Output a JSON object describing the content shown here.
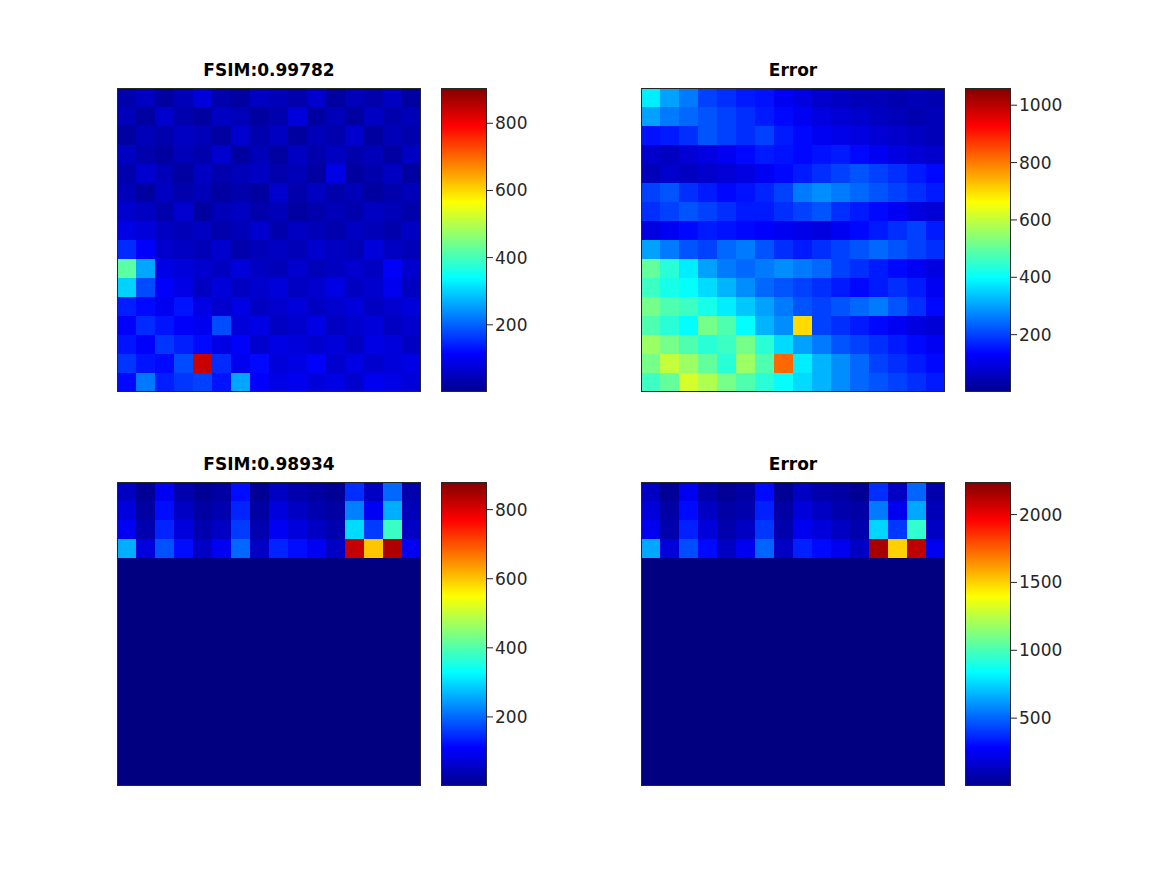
{
  "chart_data": [
    {
      "type": "heatmap",
      "title": "FSIM:0.99782",
      "tick_labels": false,
      "clim": [
        0,
        905
      ],
      "cticks": [
        0,
        200,
        400,
        600,
        800
      ],
      "cells": [
        [
          40,
          60,
          30,
          50,
          80,
          40,
          30,
          60,
          50,
          40,
          70,
          30,
          50,
          40,
          60,
          30
        ],
        [
          50,
          30,
          70,
          40,
          30,
          60,
          50,
          30,
          40,
          80,
          30,
          50,
          30,
          60,
          40,
          50
        ],
        [
          30,
          50,
          40,
          60,
          50,
          30,
          70,
          40,
          60,
          30,
          50,
          40,
          70,
          30,
          50,
          40
        ],
        [
          60,
          40,
          30,
          50,
          40,
          70,
          30,
          50,
          30,
          60,
          40,
          60,
          40,
          50,
          30,
          60
        ],
        [
          40,
          70,
          50,
          30,
          60,
          40,
          50,
          60,
          40,
          50,
          30,
          90,
          30,
          40,
          60,
          30
        ],
        [
          50,
          30,
          60,
          40,
          50,
          30,
          40,
          30,
          70,
          40,
          60,
          40,
          50,
          30,
          40,
          50
        ],
        [
          70,
          60,
          40,
          70,
          30,
          50,
          60,
          40,
          50,
          30,
          40,
          50,
          40,
          60,
          50,
          40
        ],
        [
          90,
          80,
          60,
          50,
          60,
          40,
          50,
          70,
          40,
          60,
          50,
          40,
          60,
          50,
          40,
          60
        ],
        [
          150,
          110,
          70,
          60,
          50,
          70,
          40,
          50,
          60,
          50,
          70,
          60,
          50,
          80,
          60,
          50
        ],
        [
          420,
          260,
          90,
          80,
          70,
          60,
          80,
          60,
          50,
          70,
          50,
          60,
          70,
          60,
          110,
          70
        ],
        [
          300,
          180,
          110,
          90,
          60,
          80,
          60,
          70,
          80,
          60,
          70,
          90,
          60,
          70,
          100,
          60
        ],
        [
          140,
          120,
          100,
          130,
          90,
          70,
          90,
          60,
          70,
          80,
          60,
          70,
          80,
          60,
          70,
          80
        ],
        [
          110,
          150,
          130,
          110,
          100,
          180,
          80,
          90,
          60,
          70,
          90,
          60,
          70,
          80,
          60,
          70
        ],
        [
          130,
          110,
          160,
          140,
          120,
          90,
          110,
          70,
          90,
          80,
          70,
          80,
          60,
          90,
          80,
          60
        ],
        [
          160,
          130,
          120,
          180,
          840,
          150,
          100,
          120,
          80,
          90,
          110,
          70,
          90,
          70,
          80,
          90
        ],
        [
          120,
          220,
          140,
          160,
          170,
          130,
          260,
          110,
          90,
          100,
          80,
          90,
          70,
          100,
          90,
          80
        ]
      ]
    },
    {
      "type": "heatmap",
      "title": "Error",
      "tick_labels": false,
      "clim": [
        0,
        1060
      ],
      "cticks": [
        0,
        200,
        400,
        600,
        800,
        1000
      ],
      "cells": [
        [
          380,
          300,
          260,
          200,
          180,
          160,
          150,
          120,
          100,
          80,
          70,
          60,
          60,
          50,
          60,
          50
        ],
        [
          300,
          260,
          240,
          220,
          200,
          180,
          160,
          140,
          120,
          100,
          90,
          80,
          70,
          60,
          50,
          60
        ],
        [
          150,
          160,
          180,
          220,
          200,
          180,
          200,
          160,
          140,
          120,
          110,
          100,
          90,
          80,
          70,
          60
        ],
        [
          80,
          70,
          90,
          100,
          120,
          140,
          160,
          150,
          140,
          150,
          160,
          140,
          120,
          100,
          90,
          80
        ],
        [
          60,
          80,
          70,
          80,
          90,
          100,
          120,
          140,
          160,
          180,
          200,
          220,
          200,
          180,
          160,
          140
        ],
        [
          200,
          220,
          180,
          160,
          140,
          150,
          170,
          200,
          260,
          280,
          260,
          240,
          220,
          200,
          180,
          160
        ],
        [
          180,
          200,
          220,
          200,
          180,
          160,
          160,
          180,
          200,
          220,
          180,
          160,
          140,
          120,
          100,
          90
        ],
        [
          100,
          120,
          140,
          160,
          150,
          140,
          130,
          120,
          110,
          100,
          120,
          140,
          160,
          180,
          200,
          160
        ],
        [
          300,
          260,
          220,
          200,
          240,
          260,
          220,
          180,
          160,
          180,
          200,
          220,
          240,
          220,
          200,
          180
        ],
        [
          500,
          440,
          380,
          300,
          260,
          240,
          260,
          280,
          260,
          240,
          200,
          180,
          160,
          140,
          120,
          100
        ],
        [
          460,
          420,
          400,
          360,
          320,
          280,
          240,
          220,
          200,
          180,
          160,
          140,
          160,
          180,
          160,
          120
        ],
        [
          520,
          480,
          460,
          420,
          380,
          340,
          300,
          260,
          220,
          200,
          220,
          240,
          260,
          220,
          180,
          140
        ],
        [
          480,
          440,
          400,
          520,
          480,
          400,
          320,
          280,
          700,
          200,
          180,
          160,
          140,
          120,
          100,
          90
        ],
        [
          560,
          520,
          480,
          440,
          460,
          520,
          440,
          360,
          300,
          260,
          220,
          200,
          180,
          160,
          140,
          120
        ],
        [
          520,
          600,
          560,
          500,
          440,
          560,
          480,
          820,
          380,
          320,
          280,
          240,
          200,
          180,
          160,
          140
        ],
        [
          460,
          500,
          620,
          580,
          520,
          480,
          440,
          400,
          360,
          320,
          280,
          240,
          220,
          200,
          180,
          160
        ]
      ]
    },
    {
      "type": "heatmap",
      "title": "FSIM:0.98934",
      "tick_labels": false,
      "clim": [
        0,
        880
      ],
      "cticks": [
        0,
        200,
        400,
        600,
        800
      ],
      "cells": [
        [
          60,
          20,
          100,
          40,
          20,
          30,
          120,
          20,
          60,
          40,
          30,
          20,
          150,
          60,
          200,
          40
        ],
        [
          80,
          30,
          120,
          60,
          30,
          40,
          140,
          30,
          80,
          60,
          40,
          30,
          220,
          100,
          260,
          50
        ],
        [
          100,
          40,
          140,
          80,
          40,
          60,
          160,
          40,
          100,
          80,
          60,
          40,
          300,
          160,
          380,
          60
        ],
        [
          260,
          80,
          180,
          120,
          60,
          100,
          200,
          60,
          140,
          120,
          100,
          60,
          820,
          600,
          840,
          100
        ],
        [
          0,
          0,
          0,
          0,
          0,
          0,
          0,
          0,
          0,
          0,
          0,
          0,
          0,
          0,
          0,
          0
        ],
        [
          0,
          0,
          0,
          0,
          0,
          0,
          0,
          0,
          0,
          0,
          0,
          0,
          0,
          0,
          0,
          0
        ],
        [
          0,
          0,
          0,
          0,
          0,
          0,
          0,
          0,
          0,
          0,
          0,
          0,
          0,
          0,
          0,
          0
        ],
        [
          0,
          0,
          0,
          0,
          0,
          0,
          0,
          0,
          0,
          0,
          0,
          0,
          0,
          0,
          0,
          0
        ],
        [
          0,
          0,
          0,
          0,
          0,
          0,
          0,
          0,
          0,
          0,
          0,
          0,
          0,
          0,
          0,
          0
        ],
        [
          0,
          0,
          0,
          0,
          0,
          0,
          0,
          0,
          0,
          0,
          0,
          0,
          0,
          0,
          0,
          0
        ],
        [
          0,
          0,
          0,
          0,
          0,
          0,
          0,
          0,
          0,
          0,
          0,
          0,
          0,
          0,
          0,
          0
        ],
        [
          0,
          0,
          0,
          0,
          0,
          0,
          0,
          0,
          0,
          0,
          0,
          0,
          0,
          0,
          0,
          0
        ],
        [
          0,
          0,
          0,
          0,
          0,
          0,
          0,
          0,
          0,
          0,
          0,
          0,
          0,
          0,
          0,
          0
        ],
        [
          0,
          0,
          0,
          0,
          0,
          0,
          0,
          0,
          0,
          0,
          0,
          0,
          0,
          0,
          0,
          0
        ],
        [
          0,
          0,
          0,
          0,
          0,
          0,
          0,
          0,
          0,
          0,
          0,
          0,
          0,
          0,
          0,
          0
        ],
        [
          0,
          0,
          0,
          0,
          0,
          0,
          0,
          0,
          0,
          0,
          0,
          0,
          0,
          0,
          0,
          0
        ]
      ]
    },
    {
      "type": "heatmap",
      "title": "Error",
      "tick_labels": false,
      "clim": [
        0,
        2240
      ],
      "cticks": [
        0,
        500,
        1000,
        1500,
        2000
      ],
      "cells": [
        [
          150,
          50,
          250,
          100,
          50,
          80,
          300,
          50,
          150,
          100,
          80,
          50,
          380,
          150,
          500,
          100
        ],
        [
          200,
          80,
          300,
          150,
          80,
          100,
          350,
          80,
          200,
          150,
          100,
          80,
          550,
          250,
          650,
          120
        ],
        [
          250,
          100,
          350,
          200,
          100,
          150,
          400,
          100,
          250,
          200,
          150,
          100,
          750,
          400,
          950,
          150
        ],
        [
          650,
          200,
          450,
          300,
          150,
          250,
          500,
          150,
          350,
          300,
          250,
          150,
          2150,
          1500,
          2100,
          250
        ],
        [
          0,
          0,
          0,
          0,
          0,
          0,
          0,
          0,
          0,
          0,
          0,
          0,
          0,
          0,
          0,
          0
        ],
        [
          0,
          0,
          0,
          0,
          0,
          0,
          0,
          0,
          0,
          0,
          0,
          0,
          0,
          0,
          0,
          0
        ],
        [
          0,
          0,
          0,
          0,
          0,
          0,
          0,
          0,
          0,
          0,
          0,
          0,
          0,
          0,
          0,
          0
        ],
        [
          0,
          0,
          0,
          0,
          0,
          0,
          0,
          0,
          0,
          0,
          0,
          0,
          0,
          0,
          0,
          0
        ],
        [
          0,
          0,
          0,
          0,
          0,
          0,
          0,
          0,
          0,
          0,
          0,
          0,
          0,
          0,
          0,
          0
        ],
        [
          0,
          0,
          0,
          0,
          0,
          0,
          0,
          0,
          0,
          0,
          0,
          0,
          0,
          0,
          0,
          0
        ],
        [
          0,
          0,
          0,
          0,
          0,
          0,
          0,
          0,
          0,
          0,
          0,
          0,
          0,
          0,
          0,
          0
        ],
        [
          0,
          0,
          0,
          0,
          0,
          0,
          0,
          0,
          0,
          0,
          0,
          0,
          0,
          0,
          0,
          0
        ],
        [
          0,
          0,
          0,
          0,
          0,
          0,
          0,
          0,
          0,
          0,
          0,
          0,
          0,
          0,
          0,
          0
        ],
        [
          0,
          0,
          0,
          0,
          0,
          0,
          0,
          0,
          0,
          0,
          0,
          0,
          0,
          0,
          0,
          0
        ],
        [
          0,
          0,
          0,
          0,
          0,
          0,
          0,
          0,
          0,
          0,
          0,
          0,
          0,
          0,
          0,
          0
        ],
        [
          0,
          0,
          0,
          0,
          0,
          0,
          0,
          0,
          0,
          0,
          0,
          0,
          0,
          0,
          0,
          0
        ]
      ]
    }
  ]
}
